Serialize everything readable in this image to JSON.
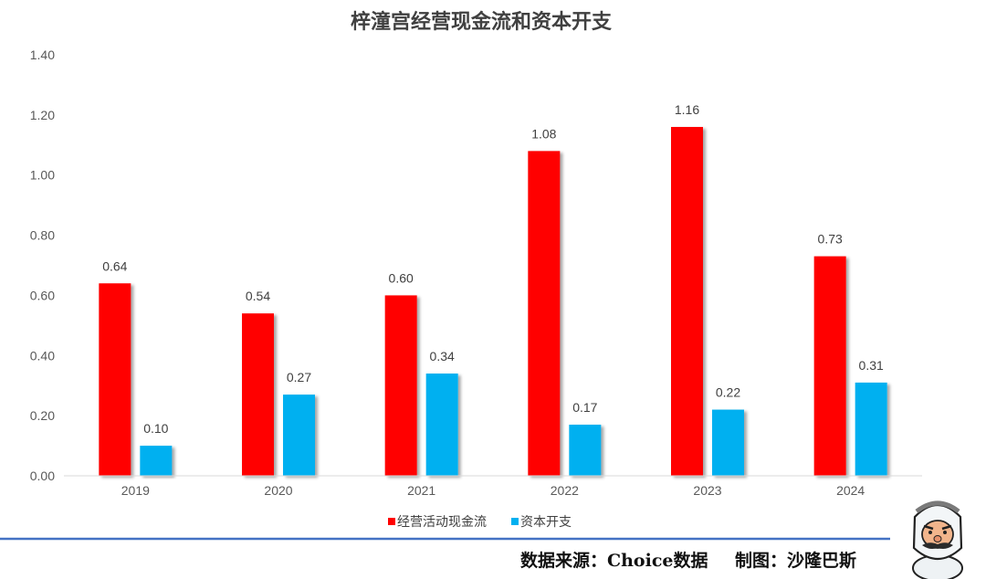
{
  "chart_data": {
    "type": "bar",
    "title": "梓潼宫经营现金流和资本开支",
    "categories": [
      "2019",
      "2020",
      "2021",
      "2022",
      "2023",
      "2024"
    ],
    "series": [
      {
        "name": "经营活动现金流",
        "color": "#ff0000",
        "values": [
          0.64,
          0.54,
          0.6,
          1.08,
          1.16,
          0.73
        ]
      },
      {
        "name": "资本开支",
        "color": "#00b0f0",
        "values": [
          0.1,
          0.27,
          0.34,
          0.17,
          0.22,
          0.31
        ]
      }
    ],
    "ylim": [
      0,
      1.4
    ],
    "yticks": [
      "0.00",
      "0.20",
      "0.40",
      "0.60",
      "0.80",
      "1.00",
      "1.20",
      "1.40"
    ],
    "data_labels": [
      [
        "0.64",
        "0.54",
        "0.60",
        "1.08",
        "1.16",
        "0.73"
      ],
      [
        "0.10",
        "0.27",
        "0.34",
        "0.17",
        "0.22",
        "0.31"
      ]
    ],
    "grid": false,
    "legend_position": "bottom"
  },
  "footer": {
    "source": "数据来源：Choice数据",
    "credit": "制图：沙隆巴斯",
    "divider_color": "#4472c4"
  },
  "mascot": {
    "icon": "cartoon-man-with-headscarf-and-mustache-icon"
  }
}
